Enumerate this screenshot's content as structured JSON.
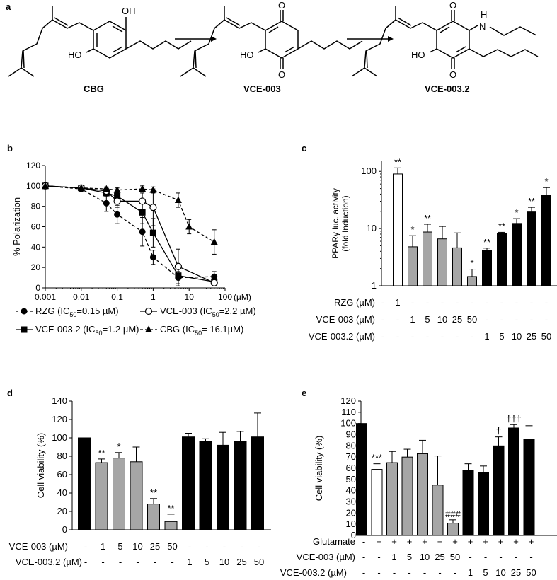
{
  "panel_labels": {
    "a": "a",
    "b": "b",
    "c": "c",
    "d": "d",
    "e": "e"
  },
  "molecules": {
    "cbg": {
      "name": "CBG",
      "oh_top": "OH",
      "oh_left": "HO"
    },
    "vce003": {
      "name": "VCE-003",
      "o_top": "O",
      "o_bottom": "O",
      "oh_left": "HO"
    },
    "vce0032": {
      "name": "VCE-003.2",
      "o_top": "O",
      "o_bottom": "O",
      "oh_left": "HO",
      "nh": "H",
      "n": "N"
    }
  },
  "chart_data": [
    {
      "id": "b",
      "type": "line",
      "ylabel": "% Polarization",
      "x_unit": "(µM)",
      "x_ticks": [
        "0.001",
        "0.01",
        "0.1",
        "1",
        "10",
        "100"
      ],
      "y_ticks": [
        "0",
        "20",
        "40",
        "60",
        "80",
        "100",
        "120"
      ],
      "ylim": [
        0,
        120
      ],
      "xscale": "log",
      "series": [
        {
          "name": "RZG",
          "ic50": "0.15 µM",
          "marker": "circle-filled",
          "dash": "dashed",
          "x": [
            0.001,
            0.01,
            0.05,
            0.1,
            0.5,
            1,
            5,
            50
          ],
          "y": [
            100,
            97,
            83,
            72,
            55,
            30,
            10,
            11
          ],
          "err": [
            2,
            3,
            8,
            9,
            14,
            7,
            6,
            5
          ]
        },
        {
          "name": "VCE-003.2",
          "ic50": "1.2 µM",
          "marker": "square-filled",
          "dash": "solid",
          "x": [
            0.001,
            0.01,
            0.05,
            0.1,
            0.5,
            1,
            5,
            50
          ],
          "y": [
            100,
            98,
            93,
            90,
            74,
            54,
            12,
            6
          ],
          "err": [
            1,
            2,
            3,
            3,
            11,
            14,
            10,
            3
          ]
        },
        {
          "name": "VCE-003",
          "ic50": "2.2 µM",
          "marker": "circle-open",
          "dash": "solid",
          "x": [
            0.001,
            0.01,
            0.05,
            0.1,
            0.5,
            1,
            5,
            50
          ],
          "y": [
            100,
            98,
            95,
            85,
            85,
            79,
            21,
            5
          ],
          "err": [
            1,
            1,
            3,
            6,
            8,
            18,
            17,
            3
          ]
        },
        {
          "name": "CBG",
          "ic50": "16.1µM",
          "marker": "triangle-filled",
          "dash": "dashed",
          "x": [
            0.001,
            0.01,
            0.05,
            0.1,
            0.5,
            1,
            5,
            10,
            50
          ],
          "y": [
            100,
            98,
            97,
            96,
            97,
            96,
            86,
            60,
            45
          ],
          "err": [
            1,
            1,
            2,
            2,
            3,
            3,
            7,
            7,
            12
          ]
        }
      ],
      "legend": [
        {
          "name": "RZG",
          "prefix": " (IC",
          "sub": "50",
          "suffix": "=0.15 µM)"
        },
        {
          "name": "VCE-003",
          "prefix": " (IC",
          "sub": "50",
          "suffix": "=2.2 µM)"
        },
        {
          "name": "VCE-003.2",
          "prefix": " (IC",
          "sub": "50",
          "suffix": "=1.2 µM)"
        },
        {
          "name": "CBG",
          "prefix": " (IC",
          "sub": "50",
          "suffix": "= 16.1µM)"
        }
      ]
    },
    {
      "id": "c",
      "type": "bar",
      "yscale": "log",
      "ylabel_line1": "PPARγ luc. activity",
      "ylabel_line2": "(fold Induction)",
      "y_ticks": [
        "1",
        "10",
        "100"
      ],
      "ylim": [
        1,
        150
      ],
      "bars": [
        {
          "value": 90,
          "err": 25,
          "fill": "white",
          "sig": "**"
        },
        {
          "value": 4.8,
          "err": 2.7,
          "fill": "gray",
          "sig": "*"
        },
        {
          "value": 8.7,
          "err": 3.2,
          "fill": "gray",
          "sig": "**"
        },
        {
          "value": 6.6,
          "err": 4.3,
          "fill": "gray",
          "sig": ""
        },
        {
          "value": 4.6,
          "err": 3.8,
          "fill": "gray",
          "sig": ""
        },
        {
          "value": 1.45,
          "err": 0.5,
          "fill": "gray",
          "sig": "*"
        },
        {
          "value": 4.2,
          "err": 0.35,
          "fill": "black",
          "sig": "**"
        },
        {
          "value": 8.3,
          "err": 0.3,
          "fill": "black",
          "sig": "**"
        },
        {
          "value": 12.3,
          "err": 2.6,
          "fill": "black",
          "sig": "*"
        },
        {
          "value": 19.5,
          "err": 4,
          "fill": "black",
          "sig": "**"
        },
        {
          "value": 38,
          "err": 14,
          "fill": "black",
          "sig": "*"
        }
      ],
      "table_rows": [
        {
          "label": "RZG (µM)",
          "cells": [
            "-",
            "1",
            "-",
            "-",
            "-",
            "-",
            "-",
            "-",
            "-",
            "-",
            "-",
            "-"
          ]
        },
        {
          "label": "VCE-003 (µM)",
          "cells": [
            "-",
            "-",
            "1",
            "5",
            "10",
            "25",
            "50",
            "-",
            "-",
            "-",
            "-",
            "-"
          ]
        },
        {
          "label": "VCE-003.2 (µM)",
          "cells": [
            "-",
            "-",
            "-",
            "-",
            "-",
            "-",
            "-",
            "1",
            "5",
            "10",
            "25",
            "50"
          ]
        }
      ]
    },
    {
      "id": "d",
      "type": "bar",
      "ylabel": "Cell viability (%)",
      "y_ticks": [
        "0",
        "20",
        "40",
        "60",
        "80",
        "100",
        "120",
        "140"
      ],
      "ylim": [
        0,
        140
      ],
      "bars": [
        {
          "value": 100,
          "err": 0,
          "fill": "black",
          "sig": ""
        },
        {
          "value": 73,
          "err": 4,
          "fill": "gray",
          "sig": "**"
        },
        {
          "value": 78,
          "err": 6,
          "fill": "gray",
          "sig": "*"
        },
        {
          "value": 74,
          "err": 16,
          "fill": "gray",
          "sig": ""
        },
        {
          "value": 28,
          "err": 6,
          "fill": "gray",
          "sig": "**"
        },
        {
          "value": 9,
          "err": 8,
          "fill": "gray",
          "sig": "**"
        },
        {
          "value": 101,
          "err": 4,
          "fill": "black",
          "sig": ""
        },
        {
          "value": 96,
          "err": 3,
          "fill": "black",
          "sig": ""
        },
        {
          "value": 92,
          "err": 14,
          "fill": "black",
          "sig": ""
        },
        {
          "value": 96,
          "err": 11,
          "fill": "black",
          "sig": ""
        },
        {
          "value": 101,
          "err": 26,
          "fill": "black",
          "sig": ""
        }
      ],
      "table_rows": [
        {
          "label": "VCE-003 (µM)",
          "cells": [
            "-",
            "1",
            "5",
            "10",
            "25",
            "50",
            "-",
            "-",
            "-",
            "-",
            "-"
          ]
        },
        {
          "label": "VCE-003.2 (µM)",
          "cells": [
            "-",
            "-",
            "-",
            "-",
            "-",
            "-",
            "1",
            "5",
            "10",
            "25",
            "50"
          ]
        }
      ]
    },
    {
      "id": "e",
      "type": "bar",
      "ylabel": "Cell viability (%)",
      "y_ticks": [
        "0",
        "10",
        "20",
        "30",
        "40",
        "50",
        "60",
        "70",
        "80",
        "90",
        "100",
        "110",
        "120"
      ],
      "ylim": [
        0,
        120
      ],
      "bars": [
        {
          "value": 100,
          "err": 0,
          "fill": "black",
          "sig": ""
        },
        {
          "value": 59,
          "err": 5,
          "fill": "white",
          "sig": "***"
        },
        {
          "value": 65,
          "err": 10,
          "fill": "gray",
          "sig": ""
        },
        {
          "value": 70,
          "err": 7,
          "fill": "gray",
          "sig": ""
        },
        {
          "value": 73,
          "err": 12,
          "fill": "gray",
          "sig": ""
        },
        {
          "value": 45,
          "err": 26,
          "fill": "gray",
          "sig": ""
        },
        {
          "value": 11,
          "err": 3,
          "fill": "gray",
          "sig": "###"
        },
        {
          "value": 58,
          "err": 6,
          "fill": "black",
          "sig": ""
        },
        {
          "value": 56,
          "err": 6,
          "fill": "black",
          "sig": ""
        },
        {
          "value": 80,
          "err": 8,
          "fill": "black",
          "sig": "†"
        },
        {
          "value": 96,
          "err": 3,
          "fill": "black",
          "sig": "†††"
        },
        {
          "value": 86,
          "err": 12,
          "fill": "black",
          "sig": ""
        }
      ],
      "table_rows": [
        {
          "label": "Glutamate",
          "cells": [
            "-",
            "+",
            "+",
            "+",
            "+",
            "+",
            "+",
            "+",
            "+",
            "+",
            "+",
            "+"
          ]
        },
        {
          "label": "VCE-003 (µM)",
          "cells": [
            "-",
            "-",
            "1",
            "5",
            "10",
            "25",
            "50",
            "-",
            "-",
            "-",
            "-",
            "-"
          ]
        },
        {
          "label": "VCE-003.2 (µM)",
          "cells": [
            "-",
            "-",
            "-",
            "-",
            "-",
            "-",
            "-",
            "1",
            "5",
            "10",
            "25",
            "50"
          ]
        }
      ]
    }
  ]
}
